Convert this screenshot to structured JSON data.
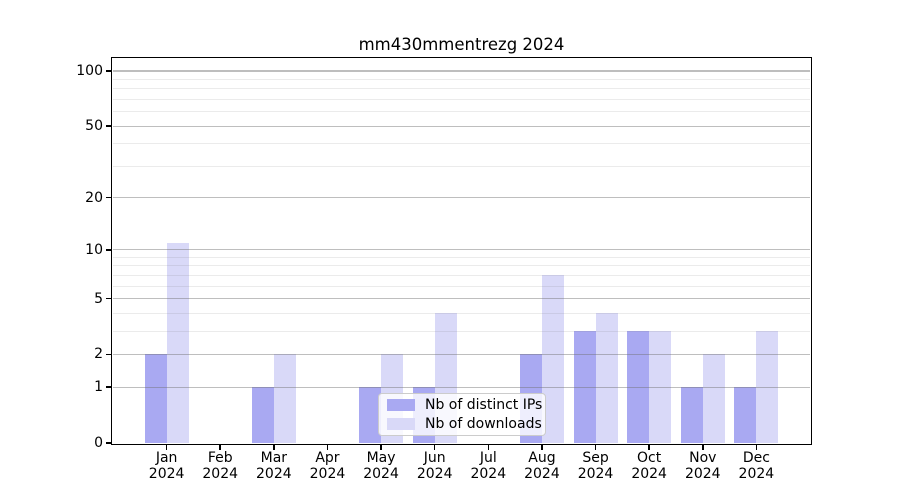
{
  "chart_data": {
    "type": "bar",
    "title": "mm430mmentrezg 2024",
    "year_label": "2024",
    "categories": [
      "Jan",
      "Feb",
      "Mar",
      "Apr",
      "May",
      "Jun",
      "Jul",
      "Aug",
      "Sep",
      "Oct",
      "Nov",
      "Dec"
    ],
    "series": [
      {
        "name": "Nb of distinct IPs",
        "color": "#a9a9f2",
        "values": [
          2,
          0,
          1,
          0,
          1,
          1,
          0,
          2,
          3,
          3,
          1,
          1
        ]
      },
      {
        "name": "Nb of downloads",
        "color": "#d9d9f8",
        "values": [
          11,
          0,
          2,
          0,
          2,
          4,
          0,
          7,
          4,
          3,
          2,
          3
        ]
      }
    ],
    "yscale": "log1p",
    "ylim": [
      0,
      100
    ],
    "yticks": [
      0,
      1,
      2,
      5,
      10,
      20,
      50,
      100
    ],
    "minor_yticks": [
      3,
      4,
      6,
      7,
      8,
      9,
      30,
      40,
      60,
      70,
      80,
      90
    ],
    "grid": true,
    "legend_position": "lower-center-inside"
  },
  "colors": {
    "background": "#ffffff",
    "axis": "#000000",
    "text": "#000000",
    "grid_major": "#bdbdbd",
    "grid_minor": "#e8e8e8",
    "legend_border": "#cccccc",
    "legend_background": "rgba(255,255,255,0.8)"
  }
}
